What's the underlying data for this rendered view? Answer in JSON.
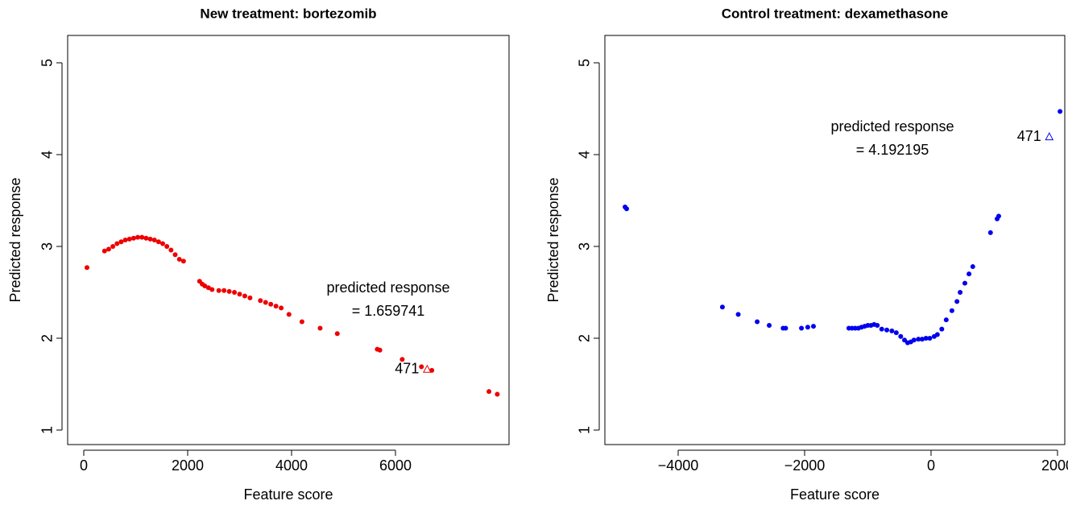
{
  "chart_data": [
    {
      "type": "scatter",
      "title": "New treatment: bortezomib",
      "xlabel": "Feature score",
      "ylabel": "Predicted response",
      "color": "#ee0000",
      "x": [
        62,
        400,
        480,
        560,
        640,
        720,
        800,
        880,
        960,
        1040,
        1120,
        1200,
        1280,
        1360,
        1440,
        1520,
        1600,
        1680,
        1760,
        1840,
        1920,
        2230,
        2280,
        2330,
        2400,
        2470,
        2600,
        2700,
        2800,
        2900,
        3000,
        3100,
        3200,
        3400,
        3500,
        3600,
        3700,
        3800,
        3950,
        4200,
        4550,
        4880,
        5650,
        5700,
        6130,
        6500,
        6700,
        7800,
        7960
      ],
      "values": [
        2.77,
        2.95,
        2.97,
        3.0,
        3.03,
        3.05,
        3.07,
        3.08,
        3.09,
        3.1,
        3.1,
        3.09,
        3.08,
        3.07,
        3.05,
        3.03,
        3.0,
        2.96,
        2.91,
        2.86,
        2.84,
        2.62,
        2.59,
        2.57,
        2.55,
        2.53,
        2.52,
        2.52,
        2.51,
        2.5,
        2.48,
        2.46,
        2.44,
        2.41,
        2.39,
        2.37,
        2.35,
        2.33,
        2.26,
        2.18,
        2.11,
        2.05,
        1.88,
        1.87,
        1.77,
        1.69,
        1.65,
        1.42,
        1.39
      ],
      "xlim": [
        -310,
        8186
      ],
      "ylim": [
        0.842,
        5.298
      ],
      "xticks": [
        0,
        2000,
        4000,
        6000
      ],
      "yticks": [
        1,
        2,
        3,
        4,
        5
      ],
      "highlight": {
        "label": "471",
        "x": 6610,
        "y": 1.659741,
        "color": "#ee0000"
      },
      "annotation": [
        "predicted response",
        "= 1.659741"
      ]
    },
    {
      "type": "scatter",
      "title": "Control treatment: dexamethasone",
      "xlabel": "Feature score",
      "ylabel": "Predicted response",
      "color": "#0000ee",
      "x": [
        -4840,
        -4815,
        -3300,
        -3050,
        -2750,
        -2560,
        -2340,
        -2300,
        -2050,
        -1950,
        -1860,
        -1300,
        -1250,
        -1200,
        -1150,
        -1100,
        -1050,
        -1000,
        -950,
        -900,
        -850,
        -780,
        -700,
        -620,
        -550,
        -480,
        -420,
        -370,
        -320,
        -270,
        -200,
        -140,
        -80,
        -20,
        50,
        100,
        170,
        240,
        330,
        410,
        460,
        535,
        600,
        660,
        940,
        1045,
        1070,
        2040
      ],
      "values": [
        3.43,
        3.41,
        2.34,
        2.26,
        2.18,
        2.14,
        2.11,
        2.11,
        2.11,
        2.12,
        2.13,
        2.11,
        2.11,
        2.11,
        2.11,
        2.12,
        2.13,
        2.14,
        2.14,
        2.15,
        2.14,
        2.1,
        2.09,
        2.08,
        2.06,
        2.02,
        1.98,
        1.95,
        1.96,
        1.98,
        1.99,
        1.99,
        2.0,
        2.0,
        2.02,
        2.04,
        2.1,
        2.2,
        2.3,
        2.4,
        2.5,
        2.6,
        2.7,
        2.78,
        3.15,
        3.3,
        3.33,
        4.47
      ],
      "xlim": [
        -5159,
        2115
      ],
      "ylim": [
        0.842,
        5.298
      ],
      "xticks": [
        -4000,
        -2000,
        0,
        2000
      ],
      "yticks": [
        1,
        2,
        3,
        4,
        5
      ],
      "highlight": {
        "label": "471",
        "x": 1870,
        "y": 4.192195,
        "color": "#0000ee"
      },
      "annotation": [
        "predicted response",
        "= 4.192195"
      ]
    }
  ]
}
